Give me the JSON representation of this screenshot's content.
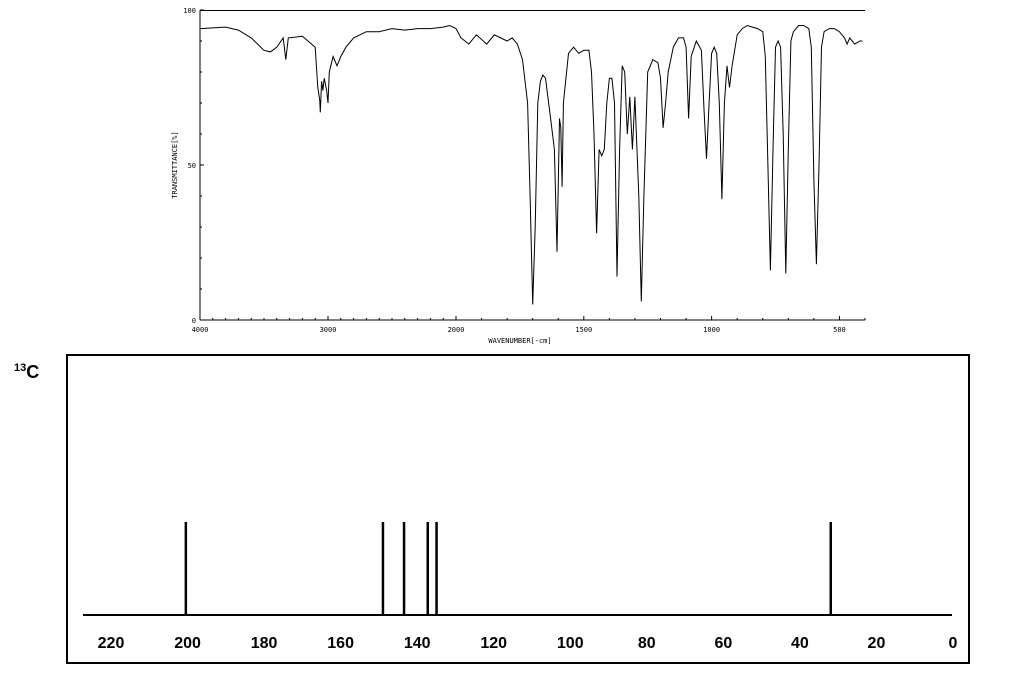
{
  "ir": {
    "type": "line",
    "ylabel": "TRANSMITTANCE[%]",
    "xlabel": "WAVENUMBER[-cm]",
    "xlim": [
      4000,
      400
    ],
    "ylim": [
      0,
      100
    ],
    "x_ticks": [
      {
        "value": 4000,
        "label": "4000"
      },
      {
        "value": 3000,
        "label": "3000"
      },
      {
        "value": 2000,
        "label": "2000"
      },
      {
        "value": 1500,
        "label": "1500"
      },
      {
        "value": 1000,
        "label": "1000"
      },
      {
        "value": 500,
        "label": "500"
      }
    ],
    "y_ticks": [
      {
        "value": 100,
        "label": "100"
      },
      {
        "value": 50,
        "label": "50"
      },
      {
        "value": 0,
        "label": "0"
      }
    ],
    "points": [
      [
        4000,
        94
      ],
      [
        3800,
        94.5
      ],
      [
        3700,
        93.5
      ],
      [
        3600,
        91
      ],
      [
        3500,
        87
      ],
      [
        3450,
        86.5
      ],
      [
        3400,
        88
      ],
      [
        3350,
        91
      ],
      [
        3330,
        84
      ],
      [
        3310,
        91
      ],
      [
        3200,
        91.5
      ],
      [
        3100,
        88
      ],
      [
        3080,
        75
      ],
      [
        3065,
        71
      ],
      [
        3060,
        67
      ],
      [
        3050,
        77
      ],
      [
        3040,
        74
      ],
      [
        3030,
        78
      ],
      [
        3010,
        74
      ],
      [
        3000,
        70
      ],
      [
        2990,
        80
      ],
      [
        2960,
        85
      ],
      [
        2930,
        82
      ],
      [
        2900,
        85
      ],
      [
        2860,
        88
      ],
      [
        2800,
        91
      ],
      [
        2700,
        93
      ],
      [
        2600,
        93
      ],
      [
        2500,
        94
      ],
      [
        2400,
        93.5
      ],
      [
        2300,
        94
      ],
      [
        2200,
        94
      ],
      [
        2100,
        94.5
      ],
      [
        2050,
        95
      ],
      [
        2000,
        94
      ],
      [
        1980,
        91
      ],
      [
        1950,
        89
      ],
      [
        1920,
        92
      ],
      [
        1880,
        89
      ],
      [
        1850,
        92
      ],
      [
        1800,
        90
      ],
      [
        1780,
        91
      ],
      [
        1760,
        89
      ],
      [
        1740,
        84
      ],
      [
        1720,
        70
      ],
      [
        1710,
        40
      ],
      [
        1700,
        5
      ],
      [
        1690,
        30
      ],
      [
        1680,
        70
      ],
      [
        1670,
        77
      ],
      [
        1660,
        79
      ],
      [
        1650,
        78
      ],
      [
        1630,
        65
      ],
      [
        1615,
        55
      ],
      [
        1605,
        22
      ],
      [
        1595,
        65
      ],
      [
        1590,
        62
      ],
      [
        1585,
        43
      ],
      [
        1580,
        70
      ],
      [
        1560,
        86
      ],
      [
        1540,
        88
      ],
      [
        1520,
        86
      ],
      [
        1500,
        87
      ],
      [
        1480,
        87
      ],
      [
        1470,
        80
      ],
      [
        1460,
        60
      ],
      [
        1450,
        28
      ],
      [
        1440,
        55
      ],
      [
        1430,
        53
      ],
      [
        1420,
        55
      ],
      [
        1410,
        70
      ],
      [
        1400,
        78
      ],
      [
        1390,
        78
      ],
      [
        1380,
        70
      ],
      [
        1370,
        14
      ],
      [
        1360,
        55
      ],
      [
        1350,
        82
      ],
      [
        1340,
        80
      ],
      [
        1330,
        60
      ],
      [
        1320,
        72
      ],
      [
        1310,
        55
      ],
      [
        1300,
        72
      ],
      [
        1285,
        40
      ],
      [
        1275,
        6
      ],
      [
        1265,
        40
      ],
      [
        1250,
        80
      ],
      [
        1230,
        84
      ],
      [
        1210,
        83
      ],
      [
        1200,
        78
      ],
      [
        1190,
        62
      ],
      [
        1180,
        70
      ],
      [
        1170,
        80
      ],
      [
        1150,
        88
      ],
      [
        1130,
        91
      ],
      [
        1110,
        91
      ],
      [
        1100,
        88
      ],
      [
        1090,
        65
      ],
      [
        1080,
        85
      ],
      [
        1060,
        90
      ],
      [
        1040,
        87
      ],
      [
        1030,
        68
      ],
      [
        1020,
        52
      ],
      [
        1010,
        70
      ],
      [
        1000,
        86
      ],
      [
        990,
        88
      ],
      [
        980,
        86
      ],
      [
        970,
        70
      ],
      [
        960,
        39
      ],
      [
        950,
        70
      ],
      [
        940,
        82
      ],
      [
        930,
        75
      ],
      [
        920,
        82
      ],
      [
        900,
        92
      ],
      [
        880,
        94
      ],
      [
        860,
        95
      ],
      [
        840,
        94.5
      ],
      [
        820,
        94
      ],
      [
        800,
        93
      ],
      [
        790,
        85
      ],
      [
        780,
        50
      ],
      [
        770,
        16
      ],
      [
        760,
        55
      ],
      [
        750,
        88
      ],
      [
        740,
        90
      ],
      [
        730,
        88
      ],
      [
        720,
        60
      ],
      [
        710,
        15
      ],
      [
        700,
        55
      ],
      [
        690,
        90
      ],
      [
        680,
        93
      ],
      [
        670,
        94
      ],
      [
        660,
        95
      ],
      [
        640,
        95
      ],
      [
        620,
        94
      ],
      [
        610,
        88
      ],
      [
        600,
        45
      ],
      [
        590,
        18
      ],
      [
        580,
        50
      ],
      [
        570,
        88
      ],
      [
        560,
        93
      ],
      [
        540,
        94
      ],
      [
        520,
        94
      ],
      [
        500,
        93
      ],
      [
        480,
        91
      ],
      [
        470,
        89
      ],
      [
        460,
        91
      ],
      [
        440,
        89
      ],
      [
        420,
        90
      ],
      [
        410,
        90
      ]
    ]
  },
  "nmr": {
    "type": "bar",
    "nucleus_sup": "13",
    "nucleus": "C",
    "xlim": [
      225,
      0
    ],
    "x_ticks": [
      220,
      200,
      180,
      160,
      140,
      120,
      100,
      80,
      60,
      40,
      20,
      0
    ],
    "peaks": [
      {
        "shift": 200.5,
        "height": 1
      },
      {
        "shift": 149,
        "height": 1
      },
      {
        "shift": 143.5,
        "height": 1
      },
      {
        "shift": 137.3,
        "height": 1
      },
      {
        "shift": 135,
        "height": 1
      },
      {
        "shift": 32,
        "height": 1
      }
    ]
  }
}
